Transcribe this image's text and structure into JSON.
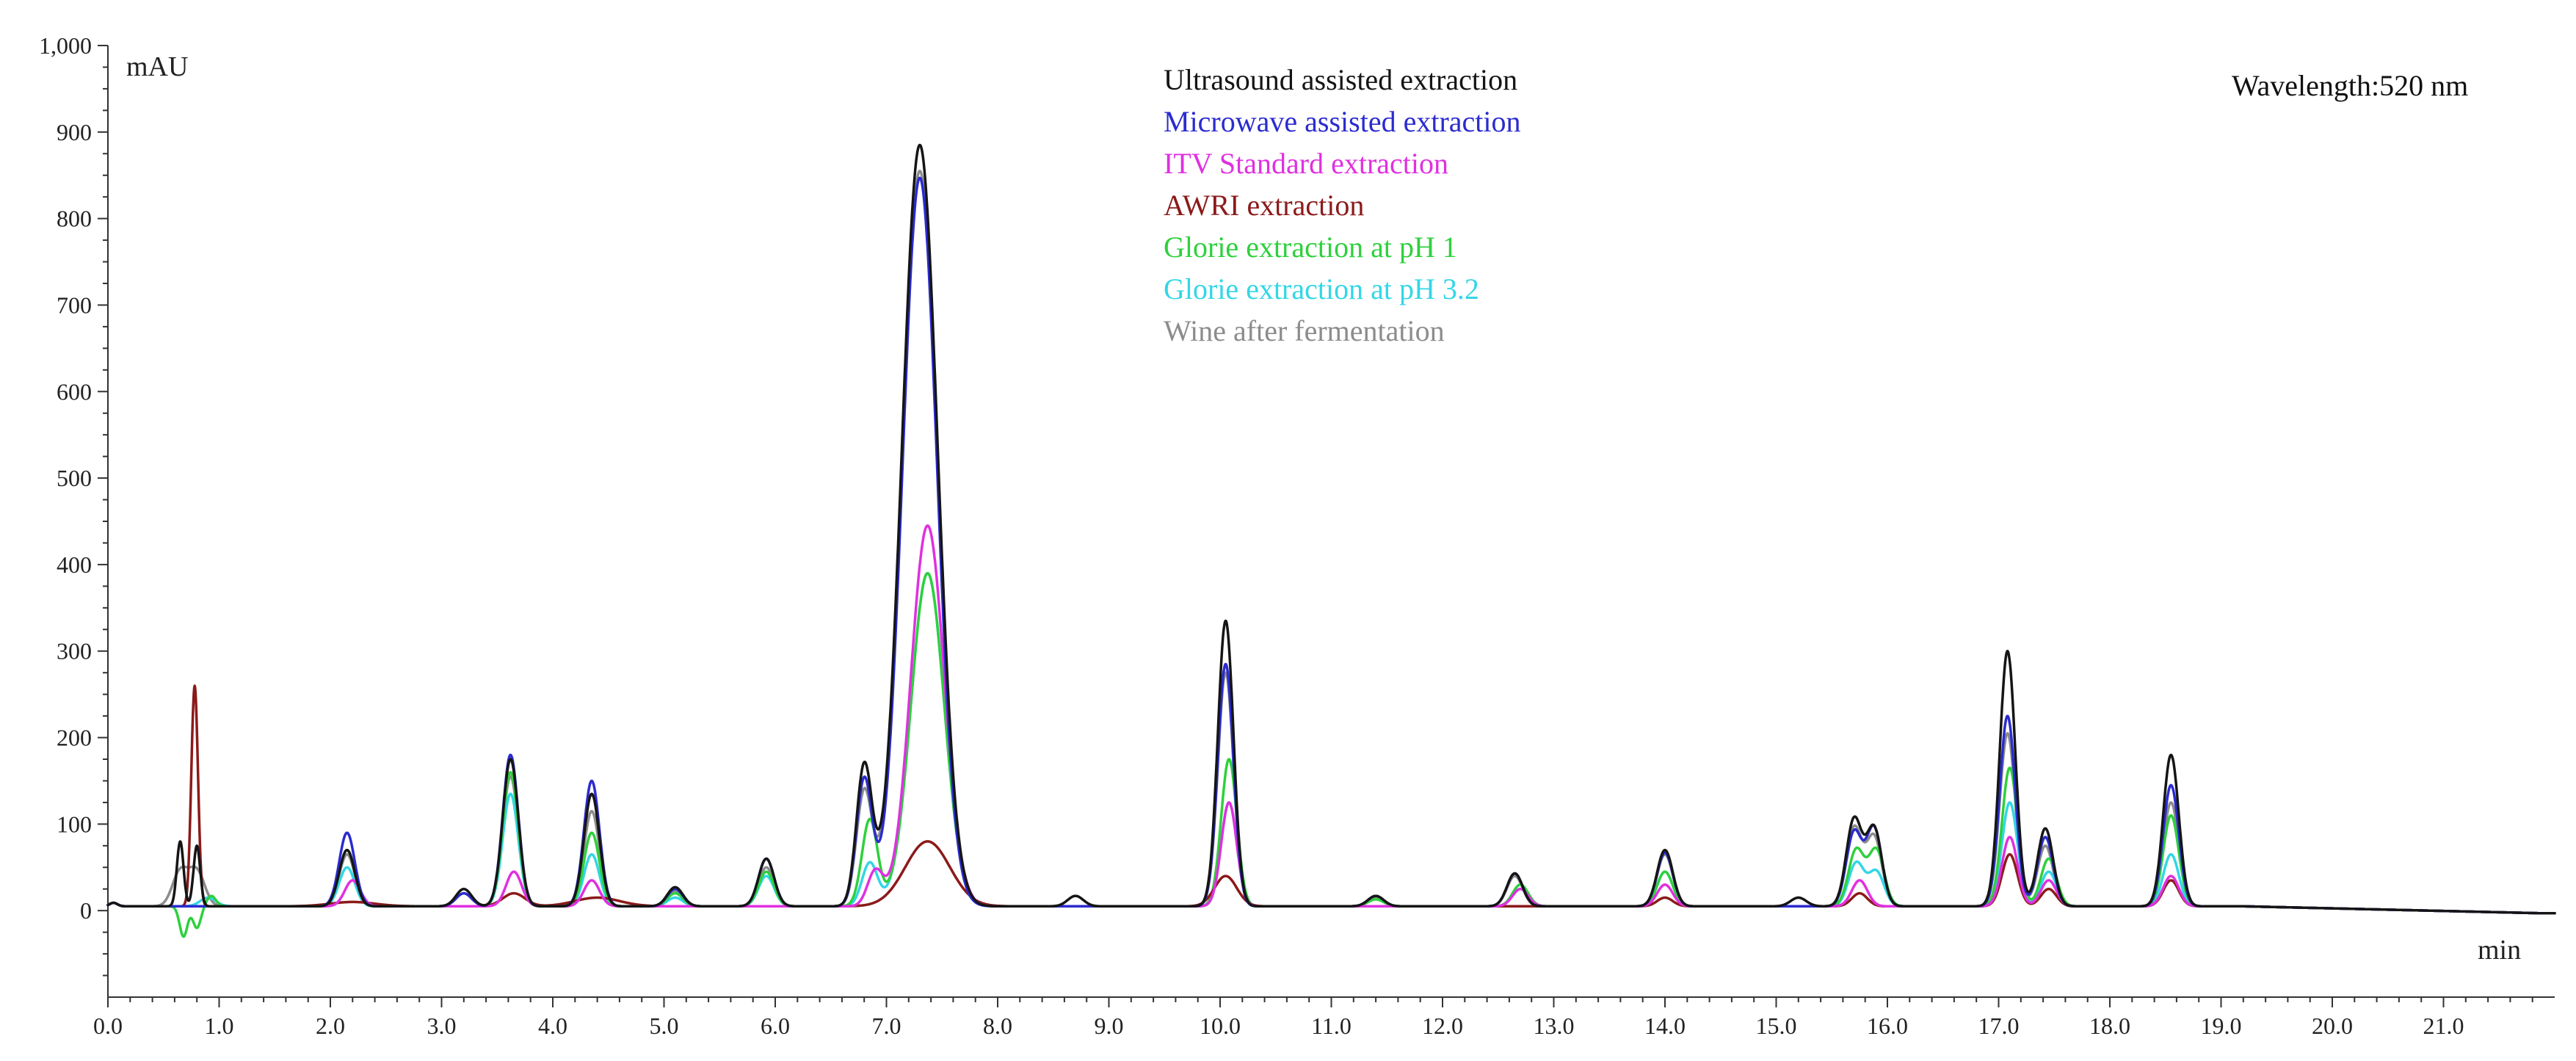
{
  "chart_data": {
    "type": "line",
    "title": "",
    "ylabel": "mAU",
    "xlabel": "min",
    "annotation": "Wavelength:520 nm",
    "xlim": [
      0,
      22
    ],
    "ylim": [
      -100,
      1000
    ],
    "xticks": [
      0.0,
      1.0,
      2.0,
      3.0,
      4.0,
      5.0,
      6.0,
      7.0,
      8.0,
      9.0,
      10.0,
      11.0,
      12.0,
      13.0,
      14.0,
      15.0,
      16.0,
      17.0,
      18.0,
      19.0,
      20.0,
      21.0
    ],
    "xtick_labels": [
      "0.0",
      "1.0",
      "2.0",
      "3.0",
      "4.0",
      "5.0",
      "6.0",
      "7.0",
      "8.0",
      "9.0",
      "10.0",
      "11.0",
      "12.0",
      "13.0",
      "14.0",
      "15.0",
      "16.0",
      "17.0",
      "18.0",
      "19.0",
      "20.0",
      "21.0"
    ],
    "yticks": [
      0,
      100,
      200,
      300,
      400,
      500,
      600,
      700,
      800,
      900,
      1000
    ],
    "ytick_labels": [
      "0",
      "100",
      "200",
      "300",
      "400",
      "500",
      "600",
      "700",
      "800",
      "900",
      "1,000"
    ],
    "baseline": 5,
    "peak_width": 0.07,
    "series": [
      {
        "name": "Wine after fermentation",
        "color": "#8c8c8c",
        "peaks": [
          [
            0.65,
            40
          ],
          [
            0.8,
            40
          ],
          [
            2.15,
            60
          ],
          [
            3.2,
            15
          ],
          [
            3.62,
            150
          ],
          [
            4.35,
            110
          ],
          [
            5.1,
            18
          ],
          [
            5.92,
            45
          ],
          [
            6.8,
            130
          ],
          [
            7.3,
            850,
            0.16
          ],
          [
            10.05,
            270
          ],
          [
            11.4,
            10
          ],
          [
            12.65,
            35
          ],
          [
            14.0,
            60
          ],
          [
            15.7,
            90
          ],
          [
            15.88,
            80
          ],
          [
            17.08,
            200
          ],
          [
            17.42,
            70
          ],
          [
            18.55,
            120
          ]
        ]
      },
      {
        "name": "Glorie extraction at pH 3.2",
        "color": "#33d6e6",
        "peaks": [
          [
            0.9,
            10
          ],
          [
            2.15,
            45
          ],
          [
            3.62,
            130
          ],
          [
            4.35,
            60
          ],
          [
            5.1,
            10
          ],
          [
            5.92,
            35
          ],
          [
            6.85,
            50
          ],
          [
            7.37,
            385,
            0.15
          ],
          [
            10.08,
            120
          ],
          [
            12.7,
            20
          ],
          [
            14.0,
            40
          ],
          [
            15.72,
            50
          ],
          [
            15.9,
            40
          ],
          [
            17.1,
            120
          ],
          [
            17.45,
            40
          ],
          [
            18.55,
            60
          ]
        ]
      },
      {
        "name": "Glorie extraction at pH 1",
        "color": "#2ed03c",
        "peaks": [
          [
            0.68,
            -35,
            0.035
          ],
          [
            0.8,
            -25,
            0.035
          ],
          [
            0.93,
            12,
            0.04
          ],
          [
            2.15,
            65
          ],
          [
            3.62,
            155
          ],
          [
            4.35,
            85
          ],
          [
            5.1,
            15
          ],
          [
            5.92,
            40
          ],
          [
            6.85,
            100
          ],
          [
            7.37,
            385,
            0.15
          ],
          [
            10.08,
            170
          ],
          [
            11.4,
            8
          ],
          [
            12.7,
            25
          ],
          [
            14.0,
            40
          ],
          [
            15.72,
            65
          ],
          [
            15.9,
            65
          ],
          [
            17.1,
            160
          ],
          [
            17.45,
            55
          ],
          [
            18.55,
            105
          ]
        ]
      },
      {
        "name": "AWRI extraction",
        "color": "#8b1a1a",
        "peaks": [
          [
            0.78,
            255,
            0.03
          ],
          [
            2.2,
            5,
            0.2
          ],
          [
            3.65,
            15,
            0.1
          ],
          [
            4.4,
            10,
            0.2
          ],
          [
            7.37,
            75,
            0.2
          ],
          [
            10.05,
            35,
            0.1
          ],
          [
            14.0,
            10
          ],
          [
            15.75,
            15
          ],
          [
            17.1,
            60
          ],
          [
            17.45,
            20
          ],
          [
            18.55,
            30
          ]
        ]
      },
      {
        "name": "ITV Standard extraction",
        "color": "#e030e0",
        "peaks": [
          [
            2.2,
            30
          ],
          [
            3.65,
            40
          ],
          [
            4.35,
            30
          ],
          [
            6.9,
            40
          ],
          [
            7.37,
            440,
            0.15
          ],
          [
            10.08,
            120
          ],
          [
            12.7,
            20
          ],
          [
            14.0,
            25
          ],
          [
            15.75,
            30
          ],
          [
            17.1,
            80
          ],
          [
            17.45,
            30
          ],
          [
            18.55,
            35
          ]
        ]
      },
      {
        "name": "Microwave assisted extraction",
        "color": "#2b2bd0",
        "peaks": [
          [
            2.15,
            85
          ],
          [
            3.2,
            15
          ],
          [
            3.62,
            175
          ],
          [
            4.35,
            145
          ],
          [
            5.1,
            20
          ],
          [
            5.92,
            55
          ],
          [
            6.8,
            145
          ],
          [
            7.3,
            842,
            0.155
          ],
          [
            10.05,
            280
          ],
          [
            11.4,
            12
          ],
          [
            12.65,
            38
          ],
          [
            14.0,
            62
          ],
          [
            15.7,
            85
          ],
          [
            15.88,
            90
          ],
          [
            17.08,
            220
          ],
          [
            17.42,
            80
          ],
          [
            18.55,
            140
          ]
        ]
      },
      {
        "name": "Ultrasound assisted extraction",
        "color": "#151515",
        "peaks": [
          [
            0.65,
            75,
            0.03
          ],
          [
            0.8,
            70,
            0.03
          ],
          [
            2.15,
            65
          ],
          [
            3.2,
            20
          ],
          [
            3.62,
            170
          ],
          [
            4.35,
            130
          ],
          [
            5.1,
            22
          ],
          [
            5.92,
            55
          ],
          [
            6.8,
            160
          ],
          [
            7.3,
            880,
            0.16
          ],
          [
            8.7,
            12
          ],
          [
            10.05,
            330
          ],
          [
            11.4,
            12
          ],
          [
            12.65,
            38
          ],
          [
            14.0,
            65
          ],
          [
            15.2,
            10
          ],
          [
            15.7,
            100
          ],
          [
            15.88,
            90
          ],
          [
            17.08,
            295
          ],
          [
            17.42,
            90
          ],
          [
            18.55,
            175
          ]
        ]
      }
    ],
    "legend": [
      {
        "label": "Ultrasound assisted extraction",
        "color": "#151515"
      },
      {
        "label": "Microwave assisted extraction",
        "color": "#2b2bd0"
      },
      {
        "label": "ITV Standard extraction",
        "color": "#e030e0"
      },
      {
        "label": "AWRI extraction",
        "color": "#8b1a1a"
      },
      {
        "label": "Glorie extraction at pH 1",
        "color": "#2ed03c"
      },
      {
        "label": "Glorie extraction at pH 3.2",
        "color": "#33d6e6"
      },
      {
        "label": "Wine after fermentation",
        "color": "#8c8c8c"
      }
    ]
  }
}
